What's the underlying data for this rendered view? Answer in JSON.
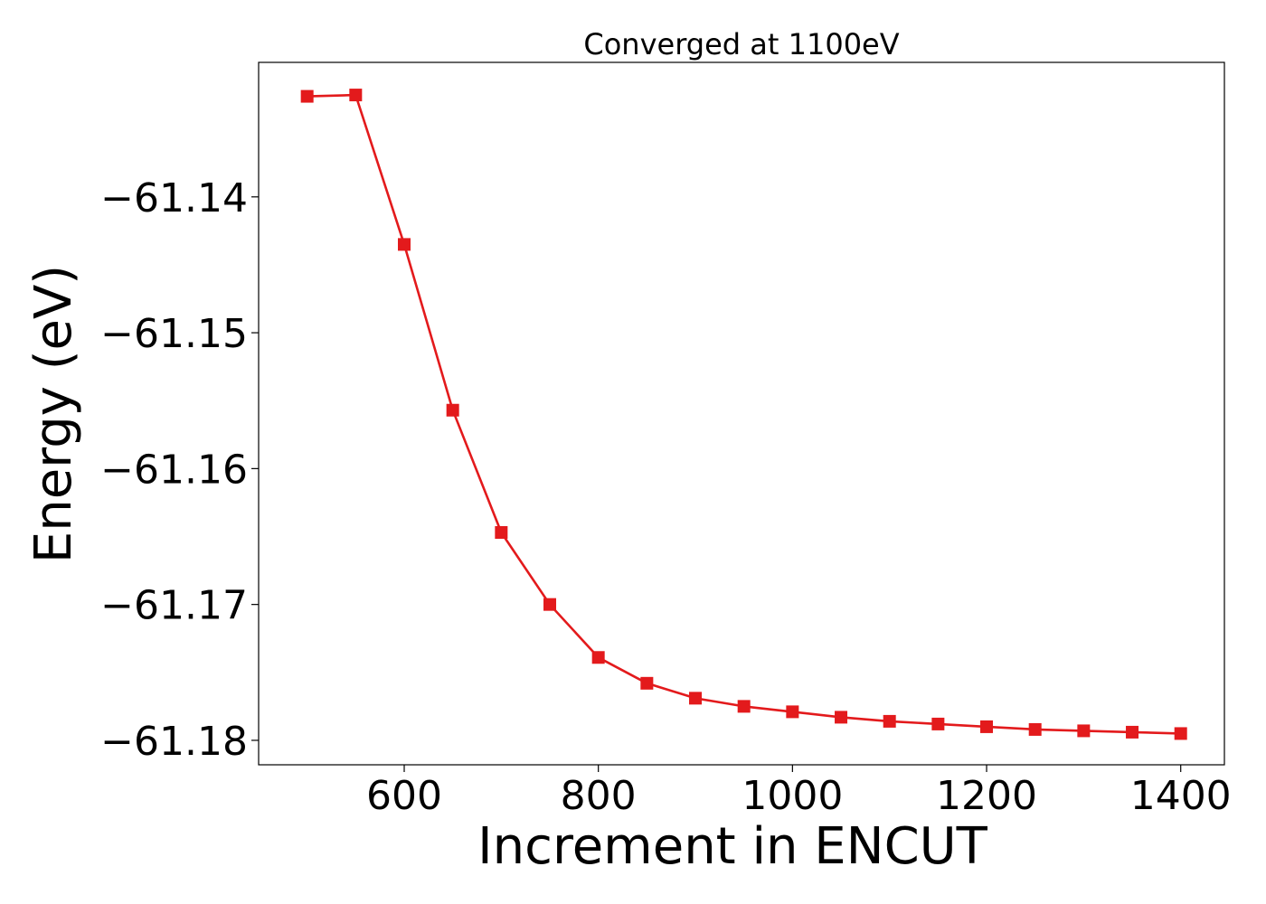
{
  "chart_data": {
    "type": "line",
    "title": "Converged at 1100eV",
    "xlabel": "Increment in ENCUT",
    "ylabel": "Energy (eV)",
    "xlim": [
      450,
      1445
    ],
    "ylim": [
      -61.1818,
      -61.1301
    ],
    "xticks": [
      600,
      800,
      1000,
      1200,
      1400
    ],
    "yticks": [
      -61.14,
      -61.15,
      -61.16,
      -61.17,
      -61.18
    ],
    "xtick_labels": [
      "600",
      "800",
      "1000",
      "1200",
      "1400"
    ],
    "ytick_labels": [
      "−61.14",
      "−61.15",
      "−61.16",
      "−61.17",
      "−61.18"
    ],
    "grid": false,
    "marker": "square",
    "color": "#e31a1c",
    "series": [
      {
        "x": [
          500,
          550,
          600,
          650,
          700,
          750,
          800,
          850,
          900,
          950,
          1000,
          1050,
          1100,
          1150,
          1200,
          1250,
          1300,
          1350,
          1400
        ],
        "y": [
          -61.1326,
          -61.1325,
          -61.1435,
          -61.1557,
          -61.1647,
          -61.17,
          -61.1739,
          -61.1758,
          -61.1769,
          -61.1775,
          -61.1779,
          -61.1783,
          -61.1786,
          -61.1788,
          -61.179,
          -61.1792,
          -61.1793,
          -61.1794,
          -61.1795
        ]
      }
    ]
  }
}
